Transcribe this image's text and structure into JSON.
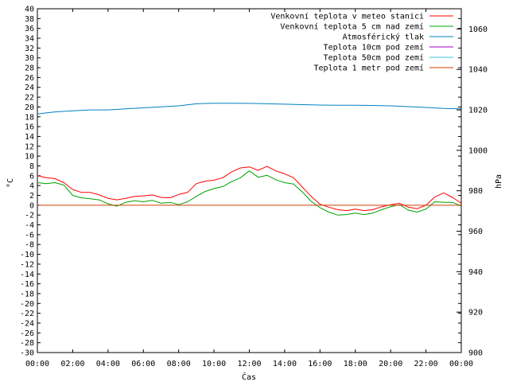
{
  "chart_data": {
    "type": "line",
    "xlabel": "Čas",
    "ylabel": "°C",
    "y2label": "hPa",
    "xlim": [
      0,
      24
    ],
    "ylim": [
      -30,
      40
    ],
    "y2lim": [
      900,
      1070
    ],
    "x_ticks": [
      "00:00",
      "02:00",
      "04:00",
      "06:00",
      "08:00",
      "10:00",
      "12:00",
      "14:00",
      "16:00",
      "18:00",
      "20:00",
      "22:00",
      "00:00"
    ],
    "y_ticks": [
      40,
      38,
      36,
      34,
      32,
      30,
      28,
      26,
      24,
      22,
      20,
      18,
      16,
      14,
      12,
      10,
      8,
      6,
      4,
      2,
      0,
      -2,
      -4,
      -6,
      -8,
      -10,
      -12,
      -14,
      -16,
      -18,
      -20,
      -22,
      -24,
      -26,
      -28,
      -30
    ],
    "y2_ticks": [
      1060,
      1040,
      1020,
      1000,
      980,
      960,
      940,
      920,
      900
    ],
    "legend_position": "top-right",
    "grid": false,
    "series": [
      {
        "name": "Venkovní teplota v meteo stanici",
        "color": "#ff0000",
        "axis": "left",
        "x": [
          0,
          0.5,
          1,
          1.5,
          2,
          2.5,
          3,
          3.5,
          4,
          4.5,
          5,
          5.5,
          6,
          6.5,
          7,
          7.5,
          8,
          8.5,
          9,
          9.5,
          10,
          10.5,
          11,
          11.5,
          12,
          12.5,
          13,
          13.5,
          14,
          14.5,
          15,
          15.5,
          16,
          16.5,
          17,
          17.5,
          18,
          18.5,
          19,
          19.5,
          20,
          20.5,
          21,
          21.5,
          22,
          22.5,
          23,
          23.5,
          24
        ],
        "values": [
          6,
          5.6,
          5.4,
          4.6,
          3.2,
          2.6,
          2.6,
          2.1,
          1.4,
          1.1,
          1.4,
          1.8,
          1.9,
          2.1,
          1.6,
          1.5,
          2.2,
          2.6,
          4.4,
          4.9,
          5.1,
          5.6,
          6.8,
          7.6,
          7.8,
          7.1,
          7.9,
          7.0,
          6.4,
          5.6,
          3.7,
          1.8,
          0.2,
          -0.4,
          -0.9,
          -1.1,
          -0.8,
          -1.1,
          -0.9,
          -0.3,
          0.1,
          0.4,
          -0.4,
          -0.7,
          0.0,
          1.7,
          2.5,
          1.6,
          0.4
        ]
      },
      {
        "name": "Venkovní teplota 5 cm nad zemí",
        "color": "#00a000",
        "axis": "left",
        "x": [
          0,
          0.5,
          1,
          1.5,
          2,
          2.5,
          3,
          3.5,
          4,
          4.5,
          5,
          5.5,
          6,
          6.5,
          7,
          7.5,
          8,
          8.5,
          9,
          9.5,
          10,
          10.5,
          11,
          11.5,
          12,
          12.5,
          13,
          13.5,
          14,
          14.5,
          15,
          15.5,
          16,
          16.5,
          17,
          17.5,
          18,
          18.5,
          19,
          19.5,
          20,
          20.5,
          21,
          21.5,
          22,
          22.5,
          23,
          23.5,
          24
        ],
        "values": [
          4.6,
          4.4,
          4.6,
          4.1,
          2.0,
          1.5,
          1.3,
          1.1,
          0.3,
          -0.2,
          0.6,
          0.9,
          0.7,
          1.0,
          0.4,
          0.6,
          0.1,
          0.7,
          1.8,
          2.8,
          3.4,
          3.8,
          4.8,
          5.6,
          7.0,
          5.7,
          6.1,
          5.2,
          4.6,
          4.3,
          2.7,
          0.8,
          -0.5,
          -1.4,
          -2.0,
          -1.9,
          -1.6,
          -1.9,
          -1.6,
          -0.9,
          -0.3,
          0.1,
          -1.0,
          -1.4,
          -0.8,
          0.7,
          0.6,
          0.6,
          -0.2
        ]
      },
      {
        "name": "Atmosférický tlak",
        "color": "#0080c0",
        "axis": "right",
        "x": [
          0,
          1,
          2,
          3,
          4,
          5,
          6,
          7,
          8,
          9,
          10,
          11,
          12,
          13,
          14,
          15,
          16,
          17,
          18,
          19,
          20,
          21,
          22,
          23,
          24
        ],
        "values": [
          1018,
          1019,
          1019.5,
          1020,
          1020,
          1020.5,
          1021,
          1021.5,
          1022,
          1023,
          1023.3,
          1023.3,
          1023.2,
          1023,
          1022.8,
          1022.6,
          1022.4,
          1022.3,
          1022.3,
          1022.2,
          1022,
          1021.6,
          1021.2,
          1020.7,
          1020.5
        ]
      },
      {
        "name": "Teplota 10cm pod zemí",
        "color": "#a000c0",
        "axis": "left",
        "x": [],
        "values": []
      },
      {
        "name": "Teplota 50cm pod zemí",
        "color": "#40c0e0",
        "axis": "left",
        "x": [],
        "values": []
      },
      {
        "name": "Teplota 1 metr pod zemí",
        "color": "#d04000",
        "axis": "left",
        "x": [
          0,
          24
        ],
        "values": [
          0,
          0
        ]
      }
    ]
  }
}
